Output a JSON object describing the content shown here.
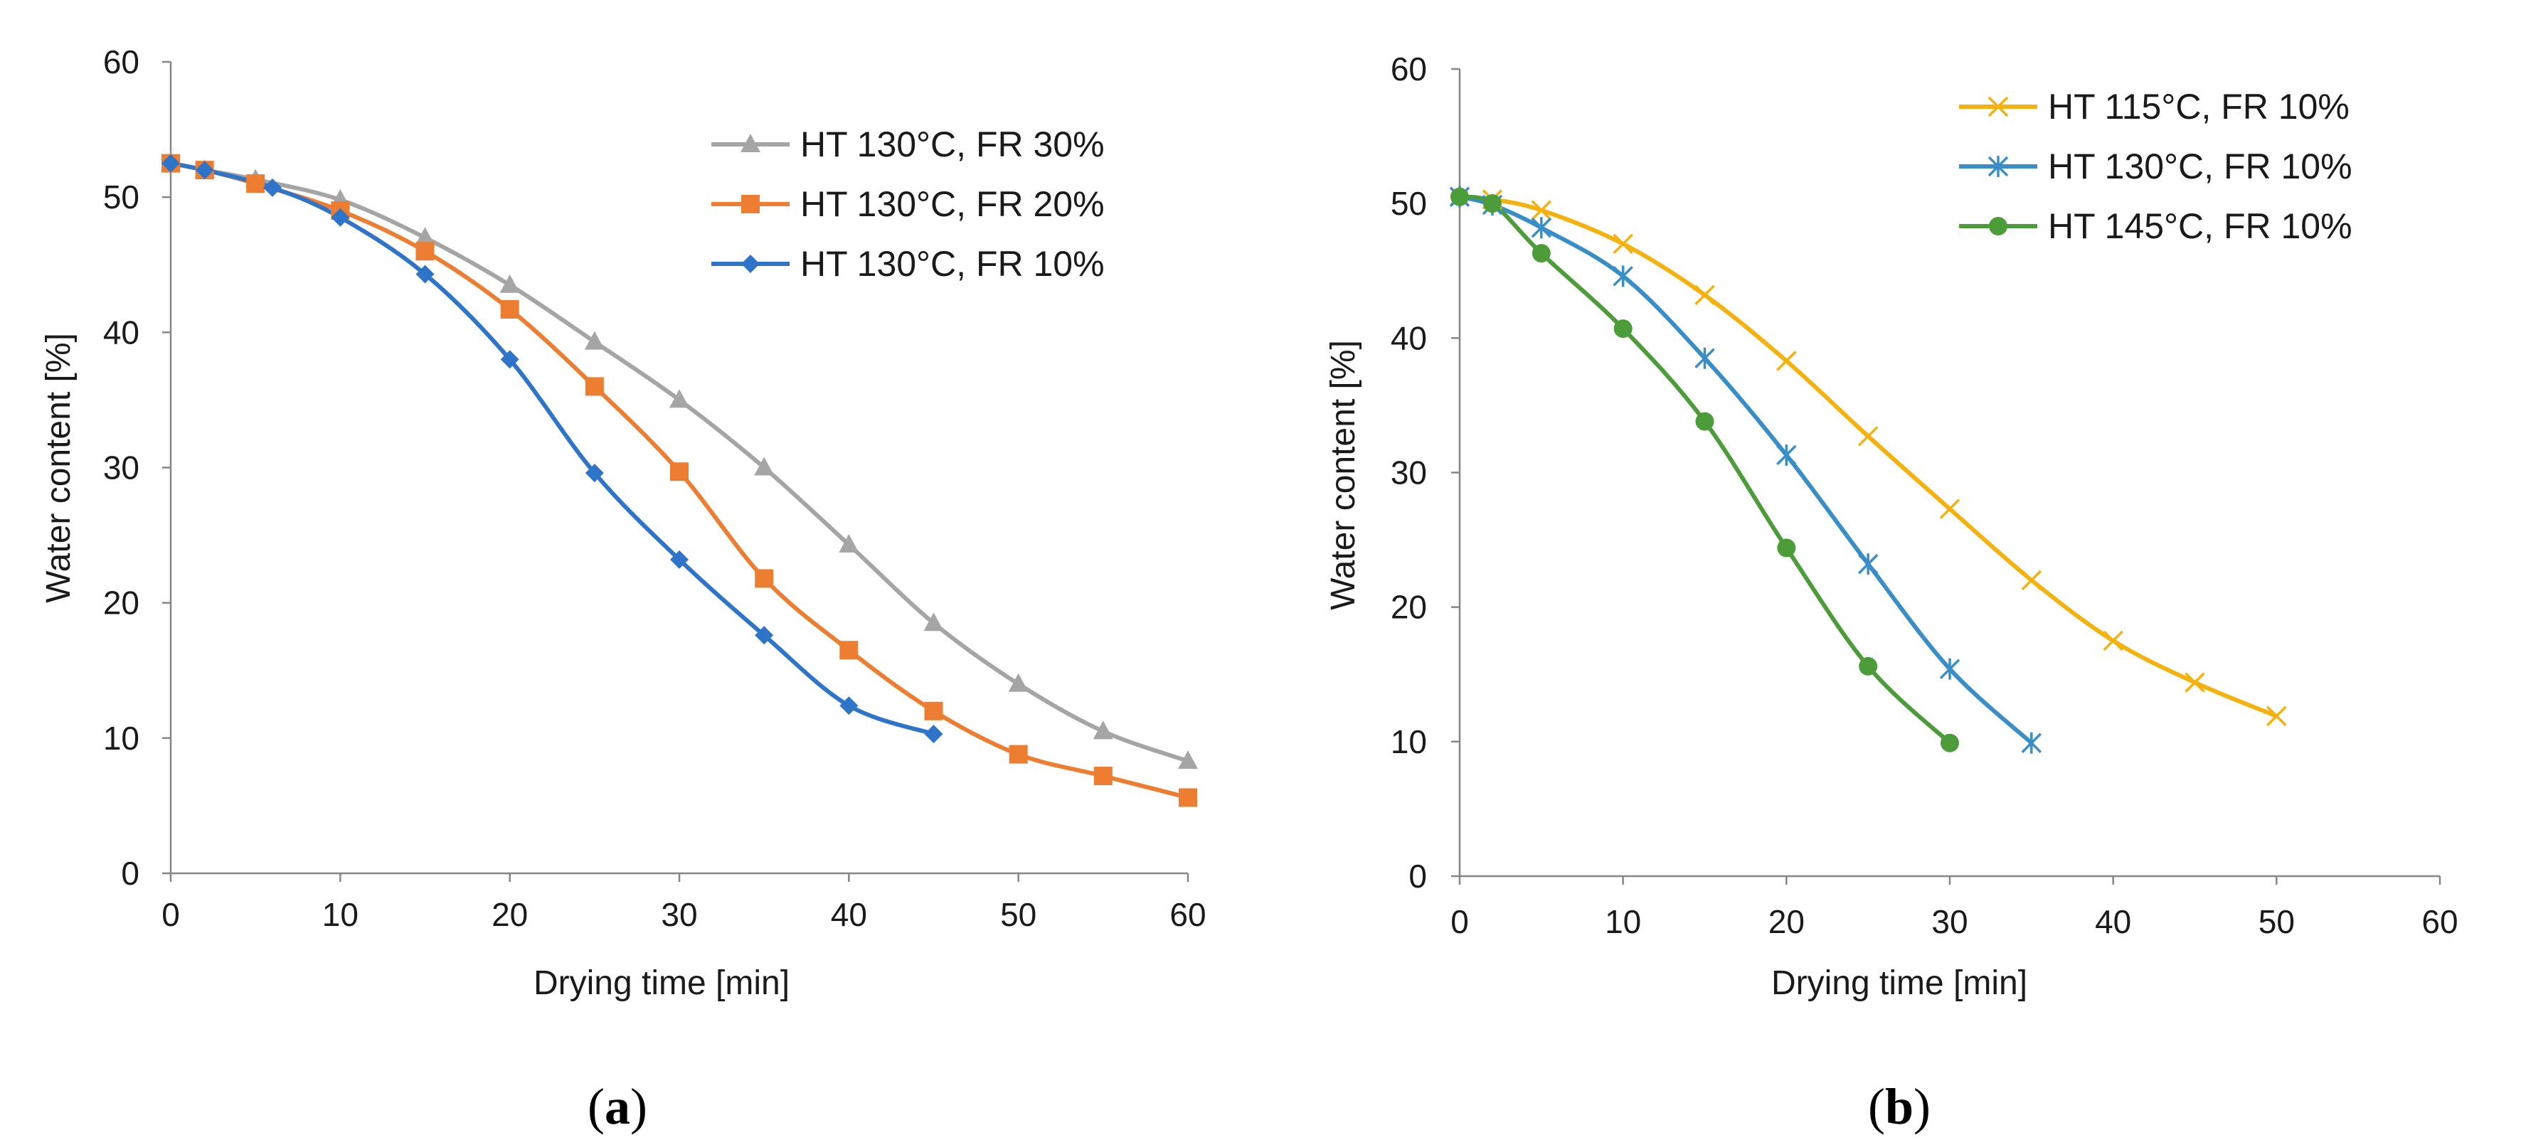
{
  "chart_data": [
    {
      "id": "a",
      "type": "line",
      "panel_label": "a",
      "xlabel": "Drying time [min]",
      "ylabel": "Water content [%]",
      "xlim": [
        0,
        60
      ],
      "ylim": [
        0,
        60
      ],
      "xticks": [
        0,
        10,
        20,
        30,
        40,
        50,
        60
      ],
      "yticks": [
        0,
        10,
        20,
        30,
        40,
        50,
        60
      ],
      "grid": false,
      "legend_position": "top-right",
      "series": [
        {
          "name": "HT 130°C, FR 30%",
          "color": "#a5a5a5",
          "marker": "triangle",
          "x": [
            0,
            2,
            5,
            10,
            15,
            20,
            25,
            30,
            35,
            40,
            45,
            50,
            55,
            60
          ],
          "y": [
            52.5,
            52.0,
            51.3,
            49.8,
            47.0,
            43.5,
            39.3,
            35.0,
            30.0,
            24.3,
            18.5,
            14.0,
            10.5,
            8.3
          ]
        },
        {
          "name": "HT 130°C, FR 20%",
          "color": "#ed7d31",
          "marker": "square",
          "x": [
            0,
            2,
            5,
            10,
            15,
            20,
            25,
            30,
            35,
            40,
            45,
            50,
            55,
            60
          ],
          "y": [
            52.5,
            52.0,
            51.0,
            49.0,
            46.0,
            41.7,
            36.0,
            29.7,
            21.8,
            16.5,
            12.0,
            8.8,
            7.2,
            5.6
          ]
        },
        {
          "name": "HT 130°C, FR 10%",
          "color": "#2e75c9",
          "marker": "diamond",
          "x": [
            0,
            2,
            6,
            10,
            15,
            20,
            25,
            30,
            35,
            40,
            45
          ],
          "y": [
            52.5,
            52.0,
            50.7,
            48.5,
            44.3,
            38.0,
            29.6,
            23.2,
            17.6,
            12.4,
            10.3
          ]
        }
      ]
    },
    {
      "id": "b",
      "type": "line",
      "panel_label": "b",
      "xlabel": "Drying time [min]",
      "ylabel": "Water content [%]",
      "xlim": [
        0,
        60
      ],
      "ylim": [
        0,
        60
      ],
      "xticks": [
        0,
        10,
        20,
        30,
        40,
        50,
        60
      ],
      "yticks": [
        0,
        10,
        20,
        30,
        40,
        50,
        60
      ],
      "grid": false,
      "legend_position": "top-right",
      "series": [
        {
          "name": "HT 115°C, FR 10%",
          "color": "#f5b20f",
          "marker": "x",
          "x": [
            0,
            2,
            5,
            10,
            15,
            20,
            25,
            30,
            35,
            40,
            45,
            50
          ],
          "y": [
            50.5,
            50.3,
            49.5,
            47.0,
            43.2,
            38.3,
            32.7,
            27.3,
            22.0,
            17.5,
            14.4,
            11.9
          ]
        },
        {
          "name": "HT 130°C, FR 10%",
          "color": "#3a8ec8",
          "marker": "star",
          "x": [
            0,
            2,
            5,
            10,
            15,
            20,
            25,
            30,
            35
          ],
          "y": [
            50.5,
            49.9,
            48.2,
            44.6,
            38.5,
            31.3,
            23.2,
            15.4,
            9.9
          ]
        },
        {
          "name": "HT 145°C, FR 10%",
          "color": "#4c9c3a",
          "marker": "circle",
          "x": [
            0,
            2,
            5,
            10,
            15,
            20,
            25,
            30
          ],
          "y": [
            50.5,
            50.0,
            46.3,
            40.7,
            33.8,
            24.4,
            15.6,
            9.9
          ]
        }
      ]
    }
  ]
}
